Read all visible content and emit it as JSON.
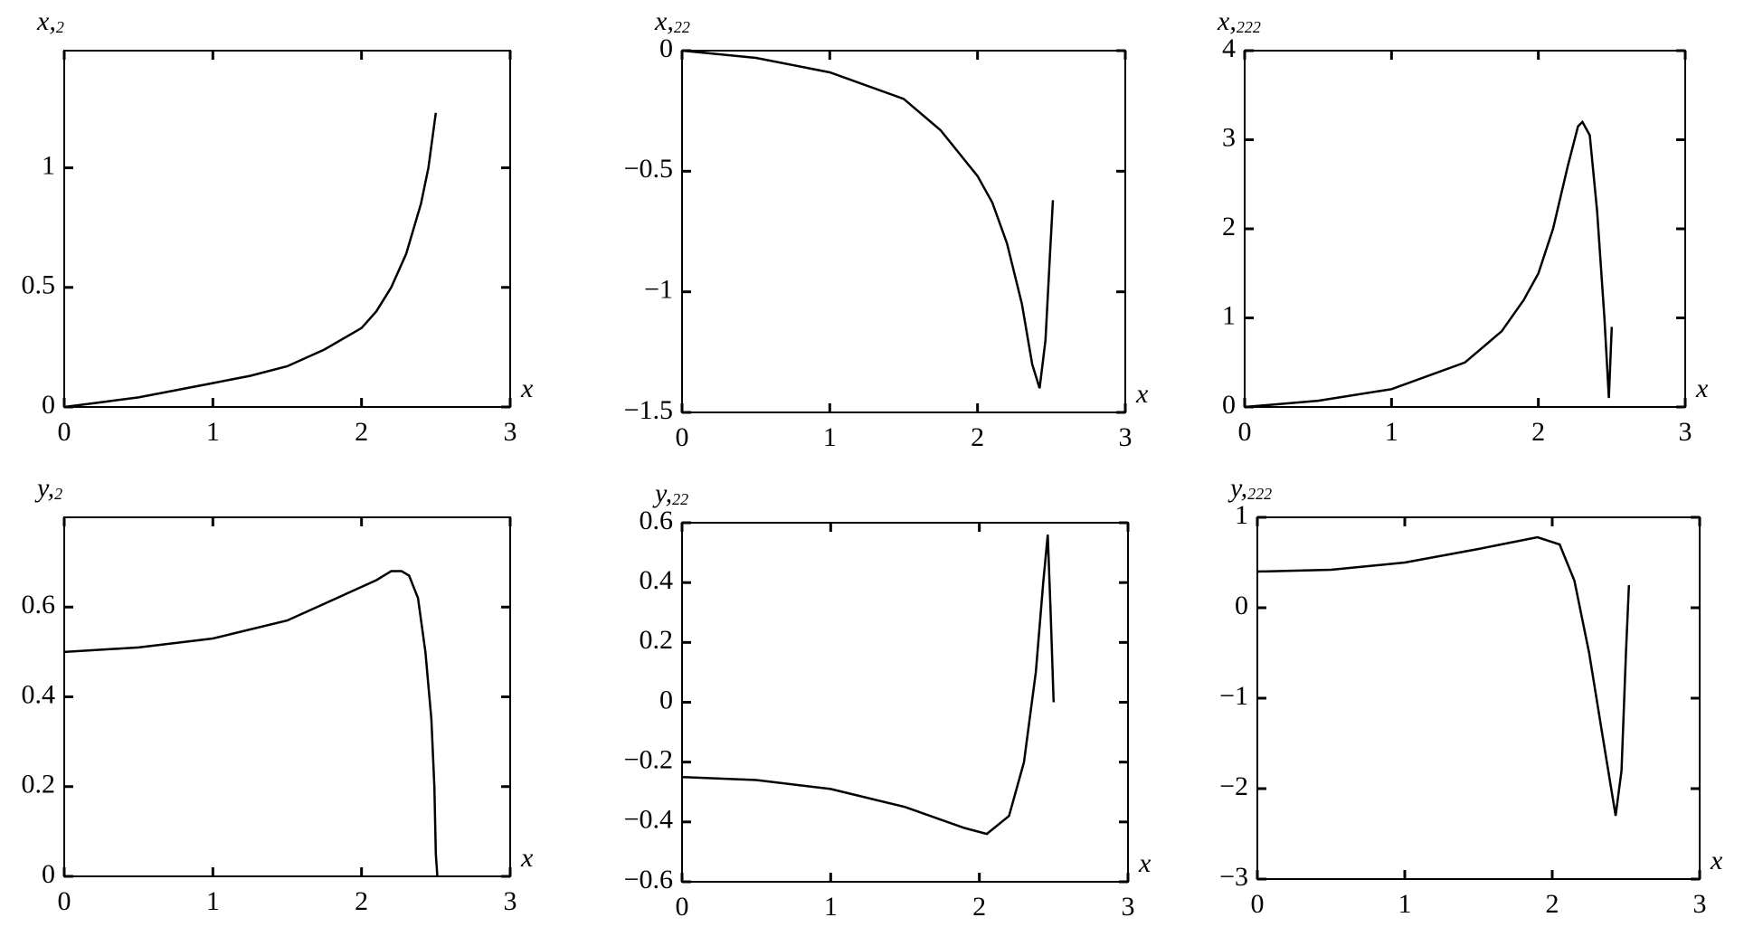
{
  "chart_data": [
    {
      "type": "line",
      "ylabel": {
        "main": "x,",
        "sub": "2"
      },
      "xlabel": "x",
      "xlim": [
        0,
        3
      ],
      "xticks": [
        0,
        1,
        2,
        3
      ],
      "ylim": [
        0,
        1.49
      ],
      "yticks": [
        0,
        0.5,
        1
      ],
      "color": "#000000",
      "x": [
        0,
        0.25,
        0.5,
        0.75,
        1,
        1.25,
        1.5,
        1.75,
        2,
        2.1,
        2.2,
        2.3,
        2.4,
        2.45,
        2.5
      ],
      "values": [
        0,
        0.02,
        0.04,
        0.07,
        0.1,
        0.13,
        0.17,
        0.24,
        0.33,
        0.4,
        0.5,
        0.64,
        0.85,
        1.0,
        1.23
      ]
    },
    {
      "type": "line",
      "ylabel": {
        "main": "x,",
        "sub": "22"
      },
      "xlabel": "x",
      "xlim": [
        0,
        3
      ],
      "xticks": [
        0,
        1,
        2,
        3
      ],
      "ylim": [
        -1.5,
        0
      ],
      "yticks": [
        {
          "value": -1.5,
          "label": "−1.5"
        },
        {
          "value": -1,
          "label": "−1"
        },
        {
          "value": -0.5,
          "label": "−0.5"
        },
        0
      ],
      "color": "#000000",
      "x": [
        0,
        0.5,
        1,
        1.5,
        1.75,
        2,
        2.1,
        2.2,
        2.3,
        2.37,
        2.42,
        2.46,
        2.49,
        2.51
      ],
      "values": [
        0,
        -0.03,
        -0.09,
        -0.2,
        -0.33,
        -0.52,
        -0.63,
        -0.8,
        -1.05,
        -1.3,
        -1.4,
        -1.2,
        -0.85,
        -0.62
      ]
    },
    {
      "type": "line",
      "ylabel": {
        "main": "x,",
        "sub": "222"
      },
      "xlabel": "x",
      "xlim": [
        0,
        3
      ],
      "xticks": [
        0,
        1,
        2,
        3
      ],
      "ylim": [
        0,
        4
      ],
      "yticks": [
        0,
        1,
        2,
        3,
        4
      ],
      "color": "#000000",
      "x": [
        0,
        0.5,
        1,
        1.5,
        1.75,
        1.9,
        2,
        2.1,
        2.2,
        2.27,
        2.3,
        2.35,
        2.4,
        2.45,
        2.48,
        2.49,
        2.5
      ],
      "values": [
        0,
        0.07,
        0.2,
        0.5,
        0.85,
        1.2,
        1.5,
        2.0,
        2.7,
        3.15,
        3.2,
        3.05,
        2.2,
        1.0,
        0.1,
        0.5,
        0.9
      ]
    },
    {
      "type": "line",
      "ylabel": {
        "main": "y,",
        "sub": "2"
      },
      "xlabel": "x",
      "xlim": [
        0,
        3
      ],
      "xticks": [
        0,
        1,
        2,
        3
      ],
      "ylim": [
        0,
        0.8
      ],
      "yticks": [
        0,
        0.2,
        0.4,
        0.6
      ],
      "color": "#000000",
      "x": [
        0,
        0.5,
        1,
        1.5,
        1.9,
        2.1,
        2.2,
        2.27,
        2.32,
        2.38,
        2.43,
        2.47,
        2.49,
        2.5,
        2.51
      ],
      "values": [
        0.5,
        0.51,
        0.53,
        0.57,
        0.63,
        0.66,
        0.68,
        0.68,
        0.67,
        0.62,
        0.5,
        0.35,
        0.2,
        0.05,
        0
      ]
    },
    {
      "type": "line",
      "ylabel": {
        "main": "y,",
        "sub": "22"
      },
      "xlabel": "x",
      "xlim": [
        0,
        3
      ],
      "xticks": [
        0,
        1,
        2,
        3
      ],
      "ylim": [
        -0.6,
        0.6
      ],
      "yticks": [
        {
          "value": -0.6,
          "label": "−0.6"
        },
        {
          "value": -0.4,
          "label": "−0.4"
        },
        {
          "value": -0.2,
          "label": "−0.2"
        },
        0,
        0.2,
        0.4,
        0.6
      ],
      "color": "#000000",
      "x": [
        0,
        0.5,
        1,
        1.5,
        1.9,
        2.05,
        2.2,
        2.3,
        2.38,
        2.43,
        2.46,
        2.48,
        2.5
      ],
      "values": [
        -0.25,
        -0.26,
        -0.29,
        -0.35,
        -0.42,
        -0.44,
        -0.38,
        -0.2,
        0.1,
        0.4,
        0.56,
        0.3,
        0
      ]
    },
    {
      "type": "line",
      "ylabel": {
        "main": "y,",
        "sub": "222"
      },
      "xlabel": "x",
      "xlim": [
        0,
        3
      ],
      "xticks": [
        0,
        1,
        2,
        3
      ],
      "ylim": [
        -3,
        1
      ],
      "yticks": [
        {
          "value": -3,
          "label": "−3"
        },
        {
          "value": -2,
          "label": "−2"
        },
        {
          "value": -1,
          "label": "−1"
        },
        0,
        1
      ],
      "color": "#000000",
      "x": [
        0,
        0.5,
        1,
        1.5,
        1.9,
        2.05,
        2.15,
        2.25,
        2.35,
        2.43,
        2.47,
        2.5,
        2.52
      ],
      "values": [
        0.4,
        0.42,
        0.5,
        0.65,
        0.78,
        0.7,
        0.3,
        -0.5,
        -1.5,
        -2.3,
        -1.8,
        -0.5,
        0.25
      ]
    }
  ]
}
